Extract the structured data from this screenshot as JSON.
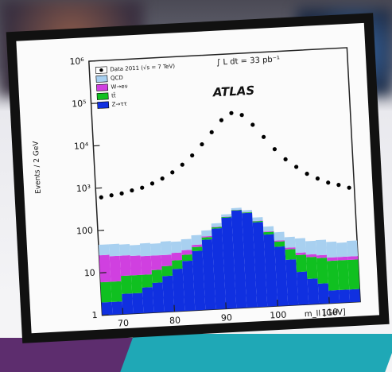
{
  "chart_data": {
    "type": "stacked-histogram",
    "title": "ATLAS",
    "subtitle": "∫ L dt = 33 pb⁻¹",
    "x_label": "m_ll [GeV]",
    "y_label": "Events / 2 GeV",
    "bins": [
      66,
      68,
      70,
      72,
      74,
      76,
      78,
      80,
      82,
      84,
      86,
      88,
      90,
      92,
      94,
      96,
      98,
      100,
      102,
      104,
      106,
      108,
      110,
      112,
      114,
      116
    ],
    "data": {
      "name": "Data 2011 (√s = 7 TeV)",
      "color": "#000000",
      "values": [
        600,
        650,
        700,
        800,
        900,
        1100,
        1400,
        1900,
        2800,
        4500,
        8000,
        15000,
        28000,
        40000,
        35000,
        20000,
        10000,
        5000,
        2800,
        1800,
        1200,
        900,
        700,
        600,
        500
      ]
    },
    "series": [
      {
        "name": "Z→ττ",
        "color": "#1030e0",
        "values": [
          2,
          2,
          3,
          3,
          4,
          5,
          7,
          10,
          15,
          25,
          45,
          80,
          140,
          200,
          170,
          100,
          50,
          25,
          12,
          6,
          4,
          3,
          2,
          2,
          2
        ]
      },
      {
        "name": "tt̄",
        "color": "#10c020",
        "values": [
          4,
          4,
          5,
          5,
          4,
          5,
          5,
          6,
          6,
          6,
          6,
          6,
          6,
          6,
          6,
          6,
          7,
          8,
          9,
          9,
          9,
          9,
          8,
          8,
          8
        ]
      },
      {
        "name": "W→eν",
        "color": "#d040e0",
        "values": [
          20,
          18,
          16,
          15,
          14,
          12,
          10,
          8,
          6,
          4,
          3,
          2,
          2,
          2,
          2,
          2,
          2,
          2,
          2,
          2,
          2,
          2,
          2,
          2,
          2
        ]
      },
      {
        "name": "QCD",
        "color": "#a8d0f0",
        "values": [
          20,
          22,
          20,
          18,
          22,
          20,
          24,
          20,
          22,
          24,
          20,
          18,
          20,
          22,
          20,
          22,
          18,
          20,
          18,
          20,
          16,
          18,
          16,
          14,
          16
        ]
      }
    ],
    "xlim": [
      66,
      116
    ],
    "xticks": [
      70,
      80,
      90,
      100,
      110
    ],
    "ylim": [
      1,
      1000000
    ],
    "yticks": [
      1,
      10,
      100,
      {
        "value": 1000,
        "label": "10³"
      },
      {
        "value": 10000,
        "label": "10⁴"
      },
      {
        "value": 100000,
        "label": "10⁵"
      },
      {
        "value": 1000000,
        "label": "10⁶"
      }
    ],
    "log_y": true
  }
}
